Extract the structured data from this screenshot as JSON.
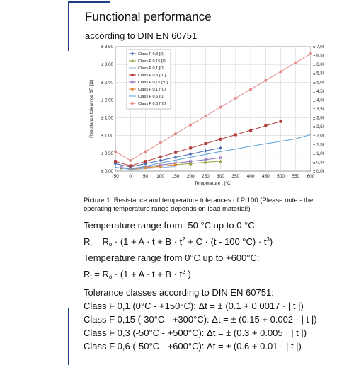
{
  "header": {
    "title": "Functional performance",
    "subtitle": "according to DIN EN 60751"
  },
  "caption": "Picture 1: Resistance and temperature tolerances of Pt100 (Please note - the operating temperature range depends on lead material!)",
  "section1": {
    "heading": "Temperature range from -50 °C up to 0 °C:",
    "formula": {
      "r": "R",
      "t_sub": "t",
      "eq": " = R",
      "o_sub": "o",
      "p1": " · (1 + A · t  + B · t",
      "sq": "2",
      "p2": " + C · (t - 100 °C) · t",
      "cube": "3",
      "p3": ")"
    }
  },
  "section2": {
    "heading": "Temperature range from 0°C up to +600°C:",
    "formula": {
      "r": "R",
      "t_sub": "t",
      "eq": " = R",
      "o_sub": "o",
      "p1": " · (1 + A · t  + B · t",
      "sq": "2",
      "p3": " )"
    }
  },
  "tolerances": {
    "heading": "Tolerance classes according to DIN EN 60751:",
    "lines": [
      "Class F 0,1 (0°C - +150°C): Δt = ± (0.1 + 0.0017 · | t |)",
      "Class F 0,15 (-30°C - +300°C): Δt = ± (0.15 + 0.002 · | t |)",
      "Class F 0,3 (-50°C - +500°C): Δt = ± (0.3 + 0.005 · | t |)",
      "Class F 0,6 (-50°C - +600°C): Δt = ± (0.6 + 0.01 · | t |)"
    ]
  },
  "chart_data": {
    "type": "line",
    "xlabel": "Temperature t [°C]",
    "ylabel": "Resistance tolerance ΔR [Ω]",
    "y2label": "",
    "xlim": [
      -50,
      600
    ],
    "ylim": [
      0,
      3.5
    ],
    "y2lim": [
      0,
      7
    ],
    "x_ticks": [
      "-50",
      "0",
      "50",
      "100",
      "150",
      "200",
      "250",
      "300",
      "350",
      "400",
      "450",
      "500",
      "550",
      "600"
    ],
    "y_ticks": [
      "± 0,00",
      "± 0,50",
      "± 1,00",
      "± 1,50",
      "± 2,00",
      "± 2,50",
      "± 3,00",
      "± 3,50"
    ],
    "y2_ticks": [
      "± 0,00",
      "± 0,50",
      "± 1,00",
      "± 1,50",
      "± 2,00",
      "± 2,50",
      "± 3,00",
      "± 3,50",
      "± 4,00",
      "± 4,50",
      "± 5,00",
      "± 5,50",
      "± 6,00",
      "± 6,50",
      "± 7,00"
    ],
    "grid": true,
    "legend": "top-left",
    "series": [
      {
        "name": "Class F 0,3 [Ω]",
        "axis": "left",
        "color": "#4a6fb5",
        "marker": "diamond",
        "x": [
          -50,
          0,
          50,
          100,
          150,
          200,
          250,
          300
        ],
        "y": [
          0.21,
          0.12,
          0.21,
          0.3,
          0.39,
          0.48,
          0.57,
          0.65
        ]
      },
      {
        "name": "Class F 0,15 [Ω]",
        "axis": "left",
        "color": "#8fa63a",
        "marker": "triangle",
        "x": [
          -30,
          0,
          50,
          100,
          150,
          200,
          250,
          300
        ],
        "y": [
          0.09,
          0.06,
          0.1,
          0.14,
          0.18,
          0.21,
          0.25,
          0.28
        ]
      },
      {
        "name": "Class F 0,1 [Ω]",
        "axis": "left",
        "color": "#8db3e2",
        "marker": "none",
        "x": [
          0,
          50,
          100,
          150
        ],
        "y": [
          0.04,
          0.07,
          0.1,
          0.13
        ]
      },
      {
        "name": "Class F 0,3 [°C]",
        "axis": "right",
        "color": "#b03a3a",
        "marker": "square",
        "x": [
          -50,
          0,
          50,
          100,
          150,
          200,
          250,
          300,
          350,
          400,
          450,
          500
        ],
        "y": [
          0.55,
          0.3,
          0.55,
          0.8,
          1.05,
          1.3,
          1.55,
          1.8,
          2.05,
          2.3,
          2.55,
          2.8
        ]
      },
      {
        "name": "Class F 0,15 [°C]",
        "axis": "right",
        "color": "#8c6ab5",
        "marker": "x",
        "x": [
          -30,
          0,
          50,
          100,
          150,
          200,
          250,
          300
        ],
        "y": [
          0.21,
          0.15,
          0.25,
          0.35,
          0.45,
          0.55,
          0.65,
          0.75
        ]
      },
      {
        "name": "Class F 0,1 [°C]",
        "axis": "right",
        "color": "#e08a3c",
        "marker": "circle",
        "x": [
          0,
          50,
          100,
          150
        ],
        "y": [
          0.1,
          0.19,
          0.27,
          0.36
        ]
      },
      {
        "name": "Class F 0,6 [Ω]",
        "axis": "left",
        "color": "#5aa0d8",
        "marker": "none",
        "x": [
          -50,
          0,
          50,
          100,
          150,
          200,
          250,
          300,
          350,
          400,
          450,
          500,
          550,
          600
        ],
        "y": [
          0.11,
          0.05,
          0.14,
          0.23,
          0.31,
          0.39,
          0.47,
          0.55,
          0.62,
          0.7,
          0.77,
          0.84,
          0.91,
          1.03
        ]
      },
      {
        "name": "Class F 0,6 [°C]",
        "axis": "right",
        "color": "#e48a8a",
        "marker": "circle",
        "x": [
          -50,
          0,
          50,
          100,
          150,
          200,
          250,
          300,
          350,
          400,
          450,
          500,
          550,
          600
        ],
        "y": [
          1.1,
          0.6,
          1.1,
          1.6,
          2.1,
          2.6,
          3.1,
          3.6,
          4.1,
          4.6,
          5.1,
          5.6,
          6.1,
          6.6
        ]
      }
    ]
  }
}
